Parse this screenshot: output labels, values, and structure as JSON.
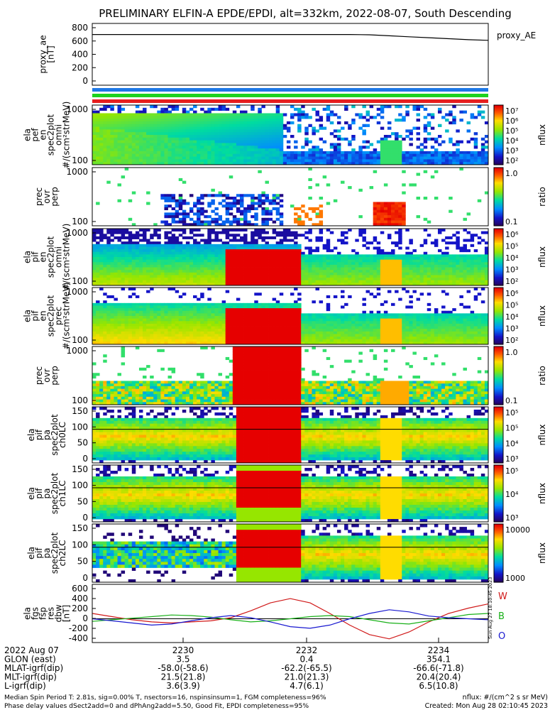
{
  "title": "PRELIMINARY ELFIN-A EPDE/EPDI, alt=332km, 2022-08-07, South Descending",
  "colors": {
    "ae_line": "#000000",
    "bar_blue": "#1e78e6",
    "bar_green": "#1ed21e",
    "bar_red": "#e61e1e",
    "w_component": "#d01818",
    "b_component": "#18b018",
    "o_component": "#1818d0"
  },
  "panels": [
    {
      "id": "ae",
      "ylabel": [
        "proxy_ae",
        "[nT]"
      ],
      "ticks": [
        "800",
        "600",
        "400",
        "200",
        "0"
      ],
      "legend": "proxy_AE"
    },
    {
      "id": "epde-omni",
      "ylabel": [
        "ela",
        "pef",
        "en",
        "spec2plot",
        "omni",
        "#/(scm²strMeV)"
      ],
      "ticks": [
        "1000",
        "100"
      ],
      "cbar_unit": "nflux",
      "cbar_ticks": [
        "10⁷",
        "10⁶",
        "10⁵",
        "10⁴",
        "10³",
        "10²"
      ]
    },
    {
      "id": "epde-ratio",
      "ylabel": [
        "prec",
        "ovr",
        "perp"
      ],
      "ticks": [
        "1000",
        "100"
      ],
      "cbar_unit": "ratio",
      "cbar_ticks": [
        "1.0",
        "0.1"
      ]
    },
    {
      "id": "epdi-omni",
      "ylabel": [
        "ela",
        "pif",
        "en",
        "spec2plot",
        "omni",
        "#/(scm²strMeV)"
      ],
      "ticks": [
        "1000",
        "100"
      ],
      "cbar_unit": "nflux",
      "cbar_ticks": [
        "10⁶",
        "10⁵",
        "10⁴",
        "10³",
        "10²"
      ]
    },
    {
      "id": "epdi-prec",
      "ylabel": [
        "ela",
        "pif",
        "en",
        "spec2plot",
        "prec",
        "#/(scm²strMeV)"
      ],
      "ticks": [
        "1000",
        "100"
      ],
      "cbar_unit": "nflux",
      "cbar_ticks": [
        "10⁶",
        "10⁵",
        "10⁴",
        "10³",
        "10²"
      ]
    },
    {
      "id": "epdi-ratio",
      "ylabel": [
        "prec",
        "ovr",
        "perp"
      ],
      "ticks": [
        "1000",
        "100"
      ],
      "cbar_unit": "ratio",
      "cbar_ticks": [
        "1.0",
        "0.1"
      ]
    },
    {
      "id": "pa-ch0",
      "ylabel": [
        "ela",
        "pif",
        "pa",
        "spec2plot",
        "ch0LC"
      ],
      "ticks": [
        "150",
        "100",
        "50",
        "0"
      ],
      "cbar_unit": "nflux",
      "cbar_ticks": [
        "10⁵",
        "10⁵",
        "10⁴",
        "10³"
      ]
    },
    {
      "id": "pa-ch1",
      "ylabel": [
        "ela",
        "pif",
        "pa",
        "spec2plot",
        "ch1LC"
      ],
      "ticks": [
        "150",
        "100",
        "50",
        "0"
      ],
      "cbar_unit": "nflux",
      "cbar_ticks": [
        "10⁵",
        "10⁴",
        "10³"
      ]
    },
    {
      "id": "pa-ch2",
      "ylabel": [
        "ela",
        "pif",
        "pa",
        "spec2plot",
        "ch2LC"
      ],
      "ticks": [
        "150",
        "100",
        "50",
        "0"
      ],
      "cbar_unit": "nflux",
      "cbar_ticks": [
        "10000",
        "1000"
      ]
    },
    {
      "id": "fgs",
      "ylabel": [
        "ela",
        "fgs",
        "fsp",
        "res",
        "dbw",
        "[nT]"
      ],
      "ticks": [
        "600",
        "400",
        "200",
        "0",
        "-200",
        "-400"
      ],
      "legend_items": [
        "W",
        "B",
        "O"
      ]
    }
  ],
  "xaxis": {
    "rows": [
      {
        "label": "2022 Aug 07",
        "values": [
          "2230",
          "2232",
          "2234"
        ]
      },
      {
        "label": "GLON (east)",
        "values": [
          "3.5",
          "0.4",
          "354.1"
        ]
      },
      {
        "label": "MLAT-igrf(dip)",
        "values": [
          "-58.0(-58.6)",
          "-62.2(-65.5)",
          "-66.6(-71.8)"
        ]
      },
      {
        "label": "MLT-igrf(dip)",
        "values": [
          "21.5(21.8)",
          "21.0(21.3)",
          "20.4(20.4)"
        ]
      },
      {
        "label": "L-igrf(dip)",
        "values": [
          "3.6(3.9)",
          "4.7(6.1)",
          "6.5(10.8)"
        ]
      }
    ]
  },
  "footer": {
    "left1": "Median Spin Period T: 2.81s, sig=0.00% T, nsectors=16, nspinsinsum=1, FGM completeness=96%",
    "left2": "Phase delay values dSect2add=0 and dPhAng2add=5.50, Good Fit, EPDI completeness=95%",
    "right1": "nflux: #/(cm^2 s sr MeV)",
    "right2": "Created: Mon Aug 28 02:10:45 2023",
    "side": "Sun Aug 27 18:10:45 2023"
  },
  "chart_data": {
    "type": "line",
    "title": "PRELIMINARY ELFIN-A EPDE/EPDI, alt=332km, 2022-08-07, South Descending",
    "x_unit_time": "UT 22:28 - 22:35",
    "x": [
      0,
      0.5,
      1,
      1.5,
      2,
      2.5,
      3,
      3.5,
      4,
      4.5,
      5,
      5.5,
      6,
      6.5,
      7,
      7.5,
      8,
      8.5,
      9,
      9.5,
      10
    ],
    "series_ae": {
      "name": "proxy_AE",
      "values": [
        680,
        680,
        680,
        680,
        680,
        680,
        680,
        680,
        680,
        680,
        680,
        680,
        680,
        680,
        675,
        660,
        645,
        630,
        615,
        600,
        590
      ]
    },
    "series": [
      {
        "name": "W",
        "values": [
          100,
          40,
          -20,
          -60,
          -80,
          -60,
          -40,
          20,
          150,
          300,
          380,
          300,
          100,
          -120,
          -300,
          -380,
          -250,
          -60,
          100,
          200,
          280
        ]
      },
      {
        "name": "B",
        "values": [
          -50,
          -20,
          10,
          40,
          70,
          60,
          30,
          -20,
          -60,
          -40,
          0,
          40,
          60,
          40,
          -20,
          -80,
          -100,
          -40,
          20,
          80,
          100
        ]
      },
      {
        "name": "O",
        "values": [
          0,
          -40,
          -80,
          -120,
          -100,
          -40,
          20,
          60,
          20,
          -60,
          -150,
          -180,
          -120,
          0,
          100,
          170,
          130,
          50,
          20,
          0,
          -20
        ]
      }
    ],
    "ylim_ae": [
      -100,
      850
    ],
    "ylim_fgs": [
      -450,
      650
    ]
  }
}
